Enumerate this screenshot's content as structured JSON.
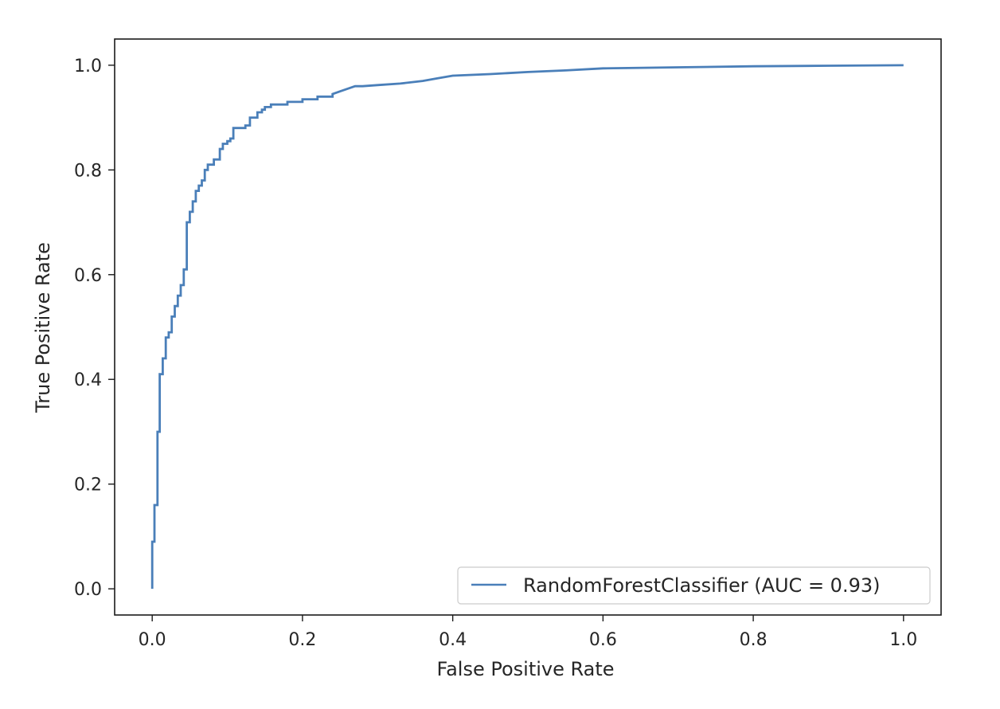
{
  "chart_data": {
    "type": "line",
    "title": "",
    "xlabel": "False Positive Rate",
    "ylabel": "True Positive Rate",
    "xlim": [
      -0.05,
      1.05
    ],
    "ylim": [
      -0.05,
      1.05
    ],
    "xticks": [
      "0.0",
      "0.2",
      "0.4",
      "0.6",
      "0.8",
      "1.0"
    ],
    "yticks": [
      "0.0",
      "0.2",
      "0.4",
      "0.6",
      "0.8",
      "1.0"
    ],
    "grid": false,
    "legend_position": "bottom-right",
    "series": [
      {
        "name": "RandomForestClassifier (AUC = 0.93)",
        "color": "#4a7fb9",
        "x": [
          0.0,
          0.0,
          0.003,
          0.003,
          0.007,
          0.007,
          0.01,
          0.01,
          0.014,
          0.014,
          0.018,
          0.018,
          0.022,
          0.022,
          0.026,
          0.026,
          0.03,
          0.03,
          0.034,
          0.034,
          0.038,
          0.038,
          0.042,
          0.042,
          0.046,
          0.046,
          0.05,
          0.05,
          0.054,
          0.054,
          0.058,
          0.058,
          0.062,
          0.062,
          0.066,
          0.066,
          0.07,
          0.07,
          0.074,
          0.074,
          0.082,
          0.082,
          0.09,
          0.09,
          0.094,
          0.094,
          0.1,
          0.1,
          0.104,
          0.104,
          0.108,
          0.108,
          0.124,
          0.124,
          0.13,
          0.13,
          0.14,
          0.14,
          0.146,
          0.146,
          0.15,
          0.15,
          0.158,
          0.158,
          0.18,
          0.18,
          0.2,
          0.2,
          0.22,
          0.22,
          0.24,
          0.24,
          0.25,
          0.26,
          0.27,
          0.28,
          0.3,
          0.33,
          0.36,
          0.38,
          0.4,
          0.45,
          0.5,
          0.55,
          0.6,
          0.7,
          0.8,
          0.9,
          1.0
        ],
        "y": [
          0.0,
          0.09,
          0.09,
          0.16,
          0.16,
          0.3,
          0.3,
          0.41,
          0.41,
          0.44,
          0.44,
          0.48,
          0.48,
          0.49,
          0.49,
          0.52,
          0.52,
          0.54,
          0.54,
          0.56,
          0.56,
          0.58,
          0.58,
          0.61,
          0.61,
          0.7,
          0.7,
          0.72,
          0.72,
          0.74,
          0.74,
          0.76,
          0.76,
          0.77,
          0.77,
          0.78,
          0.78,
          0.8,
          0.8,
          0.81,
          0.81,
          0.82,
          0.82,
          0.84,
          0.84,
          0.85,
          0.85,
          0.855,
          0.855,
          0.86,
          0.86,
          0.88,
          0.88,
          0.885,
          0.885,
          0.9,
          0.9,
          0.91,
          0.91,
          0.915,
          0.915,
          0.92,
          0.92,
          0.925,
          0.925,
          0.93,
          0.93,
          0.935,
          0.935,
          0.94,
          0.94,
          0.945,
          0.95,
          0.955,
          0.96,
          0.96,
          0.962,
          0.965,
          0.97,
          0.975,
          0.98,
          0.983,
          0.987,
          0.99,
          0.994,
          0.996,
          0.998,
          0.999,
          1.0
        ]
      }
    ]
  }
}
